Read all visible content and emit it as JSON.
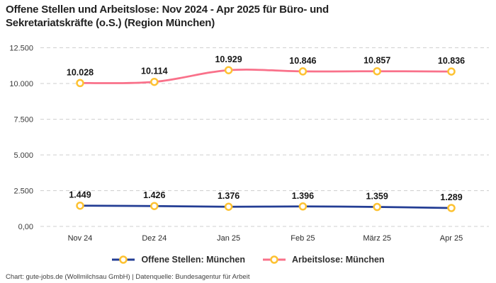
{
  "title": {
    "line1": "Offene Stellen und Arbeitslose: Nov 2024 - Apr 2025 für Büro- und",
    "line2": "Sekretariatskräfte (o.S.) (Region München)"
  },
  "footer": {
    "text": "Chart: gute-jobs.de (Wollmilchsau GmbH) | Datenquelle: Bundesagentur für Arbeit"
  },
  "chart_data": {
    "type": "line",
    "title": "Offene Stellen und Arbeitslose: Nov 2024 - Apr 2025 für Büro- und Sekretariatskräfte (o.S.) (Region München)",
    "categories": [
      "Nov 24",
      "Dez 24",
      "Jan 25",
      "Feb 25",
      "März 25",
      "Apr 25"
    ],
    "series": [
      {
        "name": "Offene Stellen: München",
        "color": "#233d94",
        "values": [
          1449,
          1426,
          1376,
          1396,
          1359,
          1289
        ],
        "labels": [
          "1.449",
          "1.426",
          "1.376",
          "1.396",
          "1.359",
          "1.289"
        ]
      },
      {
        "name": "Arbeitslose: München",
        "color": "#f9718a",
        "values": [
          10028,
          10114,
          10929,
          10846,
          10857,
          10836
        ],
        "labels": [
          "10.028",
          "10.114",
          "10.929",
          "10.846",
          "10.857",
          "10.836"
        ]
      }
    ],
    "y_ticks": [
      {
        "value": 0,
        "label": "0,00"
      },
      {
        "value": 2500,
        "label": "2.500"
      },
      {
        "value": 5000,
        "label": "5.000"
      },
      {
        "value": 7500,
        "label": "7.500"
      },
      {
        "value": 10000,
        "label": "10.000"
      },
      {
        "value": 12500,
        "label": "12.500"
      }
    ],
    "ylim": [
      0,
      12500
    ],
    "grid": "horizontal-dashed",
    "legend_position": "bottom",
    "marker_color": "#fdc232",
    "marker_fill": "#ffffff",
    "grid_color": "#cfcfcf",
    "tick_color": "#3a3a3a",
    "data_label_color": "#161616"
  }
}
